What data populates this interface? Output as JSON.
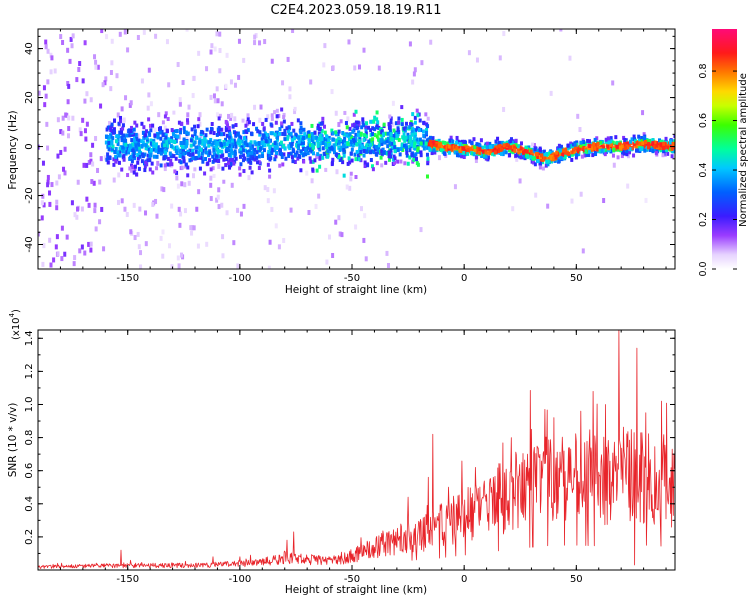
{
  "title": "C2E4.2023.059.18.19.R11",
  "colors": {
    "signal": "#e8242a",
    "frame": "#000000",
    "background": "#ffffff"
  },
  "chart_data": [
    {
      "type": "heatmap",
      "title": "C2E4.2023.059.18.19.R11",
      "xlabel": "Height of straight line (km)",
      "ylabel": "Frequency (Hz)",
      "xlim": [
        -190,
        94
      ],
      "ylim": [
        -50,
        48
      ],
      "x_ticks": [
        -150,
        -100,
        -50,
        0,
        50
      ],
      "x_tick_labels": [
        "-150",
        "-100",
        "-50",
        "0",
        "50"
      ],
      "y_ticks": [
        -40,
        -20,
        0,
        20,
        40
      ],
      "y_tick_labels": [
        "-40",
        "-20",
        "0",
        "20",
        "40"
      ],
      "colorbar": {
        "label": "Normalized spectral amplitude",
        "range": [
          0,
          0.97
        ],
        "ticks": [
          0.0,
          0.2,
          0.4,
          0.6,
          0.8
        ],
        "tick_labels": [
          "0.0",
          "0.2",
          "0.4",
          "0.6",
          "0.8"
        ],
        "colormap": "rainbow (white → violet → blue → cyan → green → yellow → orange → red → magenta)"
      },
      "ridge_track": {
        "x": [
          -160,
          -140,
          -120,
          -100,
          -80,
          -60,
          -40,
          -20,
          -16,
          -10,
          0,
          10,
          20,
          30,
          36,
          40,
          50,
          60,
          70,
          80,
          92
        ],
        "y": [
          1,
          0,
          1,
          0,
          2,
          1,
          2,
          3,
          1,
          0,
          -1,
          -2,
          0,
          -3,
          -5,
          -4,
          -1,
          0,
          0,
          1,
          0
        ]
      },
      "grid": false,
      "legend": "none"
    },
    {
      "type": "line",
      "xlabel": "Height of straight line (km)",
      "ylabel": "SNR (10 * v/v)",
      "y_multiplier_label": "(x10",
      "y_multiplier_exponent": "4",
      "xlim": [
        -190,
        94
      ],
      "ylim": [
        0,
        1.45
      ],
      "x_ticks": [
        -150,
        -100,
        -50,
        0,
        50
      ],
      "x_tick_labels": [
        "-150",
        "-100",
        "-50",
        "0",
        "50"
      ],
      "y_ticks": [
        0.2,
        0.4,
        0.6,
        0.8,
        1.0,
        1.2,
        1.4
      ],
      "y_tick_labels": [
        "0.2",
        "0.4",
        "0.6",
        "0.8",
        "1.0",
        "1.2",
        "1.4"
      ],
      "series": [
        {
          "color": "#e8242a",
          "envelope_x": [
            -190,
            -150,
            -120,
            -100,
            -90,
            -80,
            -70,
            -60,
            -50,
            -40,
            -30,
            -20,
            -15,
            -10,
            0,
            10,
            20,
            30,
            40,
            50,
            60,
            70,
            80,
            90,
            94
          ],
          "envelope_y": [
            0.02,
            0.03,
            0.03,
            0.04,
            0.05,
            0.08,
            0.07,
            0.06,
            0.09,
            0.15,
            0.2,
            0.25,
            0.24,
            0.3,
            0.36,
            0.42,
            0.5,
            0.55,
            0.6,
            0.6,
            0.58,
            0.62,
            0.6,
            0.57,
            0.55
          ],
          "peaks": [
            {
              "x": 69,
              "y": 1.45
            },
            {
              "x": 77,
              "y": 1.34
            },
            {
              "x": 63,
              "y": 1.0
            },
            {
              "x": 88,
              "y": 1.02
            },
            {
              "x": 36,
              "y": 0.97
            },
            {
              "x": 52,
              "y": 0.96
            },
            {
              "x": 40,
              "y": 0.92
            },
            {
              "x": 81,
              "y": 0.95
            },
            {
              "x": 30,
              "y": 0.85
            },
            {
              "x": 21,
              "y": 0.8
            },
            {
              "x": -14,
              "y": 0.82
            },
            {
              "x": -16,
              "y": 0.56
            },
            {
              "x": -25,
              "y": 0.44
            },
            {
              "x": -7,
              "y": 0.5
            },
            {
              "x": 5,
              "y": 0.62
            },
            {
              "x": 13,
              "y": 0.56
            },
            {
              "x": -45,
              "y": 0.15
            },
            {
              "x": -79,
              "y": 0.18
            },
            {
              "x": -76,
              "y": 0.23
            },
            {
              "x": -153,
              "y": 0.12
            },
            {
              "x": -112,
              "y": 0.08
            },
            {
              "x": -100,
              "y": 0.08
            },
            {
              "x": 76,
              "y": 0.03
            }
          ]
        }
      ],
      "grid": false,
      "legend": "none"
    }
  ]
}
